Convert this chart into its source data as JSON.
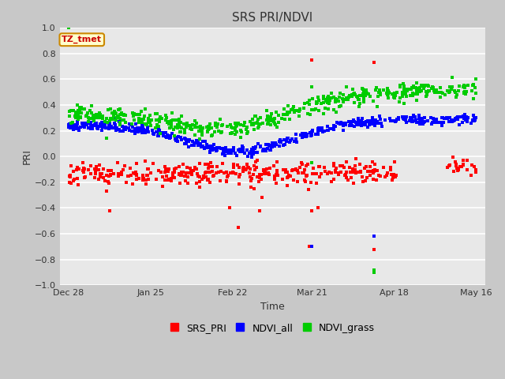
{
  "title": "SRS PRI/NDVI",
  "xlabel": "Time",
  "ylabel": "PRI",
  "ylim": [
    -1.0,
    1.0
  ],
  "annotation_text": "TZ_tmet",
  "annotation_color": "#cc0000",
  "annotation_bg": "#ffffcc",
  "annotation_border": "#cc8800",
  "fig_bg_color": "#c8c8c8",
  "plot_bg_color": "#e8e8e8",
  "grid_color": "#ffffff",
  "red_color": "#ff0000",
  "blue_color": "#0000ff",
  "green_color": "#00cc00",
  "x_tick_labels": [
    "Dec 28",
    "Jan 25",
    "Feb 22",
    "Mar 21",
    "Apr 18",
    "May 16"
  ],
  "x_tick_positions": [
    0,
    28,
    56,
    83,
    111,
    139
  ],
  "legend_labels": [
    "SRS_PRI",
    "NDVI_all",
    "NDVI_grass"
  ],
  "marker_size": 3
}
